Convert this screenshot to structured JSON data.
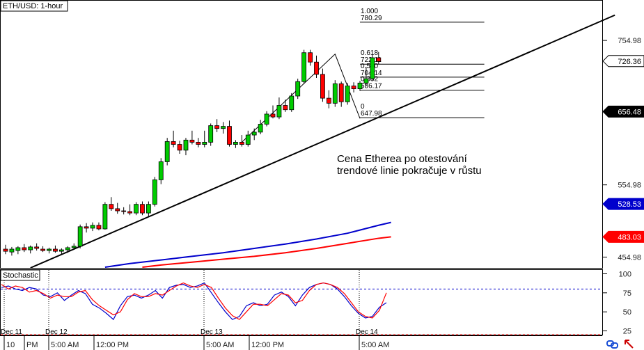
{
  "header": {
    "symbol_title": "ETH/USD: 1-hour"
  },
  "stoch_panel": {
    "title": "Stochastic"
  },
  "annotation": {
    "line1": "Cena Etherea po otestování",
    "line2": "trendové linie pokračuje v růstu"
  },
  "price_tags": [
    {
      "value": "726.36",
      "bg": "#ffffff",
      "fg": "#000000"
    },
    {
      "value": "656.48",
      "bg": "#000000",
      "fg": "#ffffff"
    },
    {
      "value": "528.53",
      "bg": "#0000cc",
      "fg": "#ffffff"
    },
    {
      "value": "483.03",
      "bg": "#ff0000",
      "fg": "#ffffff"
    }
  ],
  "time_labels": [
    {
      "day": "Dec 11",
      "time": "10"
    },
    {
      "day": "",
      "time": "PM"
    },
    {
      "day": "Dec 12",
      "time": "5:00 AM"
    },
    {
      "day": "",
      "time": "12:00 PM"
    },
    {
      "day": "Dec 13",
      "time": "5:00 AM"
    },
    {
      "day": "",
      "time": "12:00 PM"
    },
    {
      "day": "Dec 14",
      "time": "5:00 AM"
    }
  ],
  "icons": {
    "bottom_left": "link-icon",
    "bottom_right": "pointer-icon"
  },
  "colors": {
    "bull": "#00cc00",
    "bear": "#ff0000",
    "ma_fast": "#0000cc",
    "ma_slow": "#ff0000",
    "stoch_k": "#0000cc",
    "stoch_d": "#ff0000",
    "level_line": "#0000cc"
  },
  "chart_data": [
    {
      "type": "candlestick",
      "title": "ETH/USD: 1-hour",
      "ylim": [
        440,
        810
      ],
      "yticks": [
        454.98,
        554.98,
        754.98
      ],
      "candles": [
        {
          "o": 466,
          "h": 472,
          "l": 459,
          "c": 463
        },
        {
          "o": 462,
          "h": 469,
          "l": 457,
          "c": 466
        },
        {
          "o": 464,
          "h": 470,
          "l": 459,
          "c": 468
        },
        {
          "o": 468,
          "h": 473,
          "l": 462,
          "c": 465
        },
        {
          "o": 465,
          "h": 471,
          "l": 460,
          "c": 469
        },
        {
          "o": 469,
          "h": 474,
          "l": 464,
          "c": 467
        },
        {
          "o": 466,
          "h": 470,
          "l": 462,
          "c": 464
        },
        {
          "o": 464,
          "h": 468,
          "l": 460,
          "c": 466
        },
        {
          "o": 466,
          "h": 471,
          "l": 461,
          "c": 463
        },
        {
          "o": 463,
          "h": 467,
          "l": 459,
          "c": 465
        },
        {
          "o": 465,
          "h": 470,
          "l": 461,
          "c": 468
        },
        {
          "o": 468,
          "h": 474,
          "l": 466,
          "c": 470
        },
        {
          "o": 470,
          "h": 500,
          "l": 467,
          "c": 497
        },
        {
          "o": 497,
          "h": 502,
          "l": 489,
          "c": 495
        },
        {
          "o": 495,
          "h": 503,
          "l": 491,
          "c": 499
        },
        {
          "o": 499,
          "h": 503,
          "l": 492,
          "c": 494
        },
        {
          "o": 494,
          "h": 531,
          "l": 493,
          "c": 528
        },
        {
          "o": 528,
          "h": 538,
          "l": 519,
          "c": 522
        },
        {
          "o": 522,
          "h": 530,
          "l": 515,
          "c": 519
        },
        {
          "o": 519,
          "h": 524,
          "l": 514,
          "c": 518
        },
        {
          "o": 518,
          "h": 528,
          "l": 513,
          "c": 516
        },
        {
          "o": 516,
          "h": 531,
          "l": 513,
          "c": 528
        },
        {
          "o": 528,
          "h": 532,
          "l": 513,
          "c": 516
        },
        {
          "o": 516,
          "h": 532,
          "l": 511,
          "c": 528
        },
        {
          "o": 528,
          "h": 566,
          "l": 525,
          "c": 562
        },
        {
          "o": 562,
          "h": 592,
          "l": 556,
          "c": 587
        },
        {
          "o": 587,
          "h": 620,
          "l": 582,
          "c": 615
        },
        {
          "o": 615,
          "h": 630,
          "l": 607,
          "c": 611
        },
        {
          "o": 611,
          "h": 616,
          "l": 598,
          "c": 603
        },
        {
          "o": 603,
          "h": 620,
          "l": 596,
          "c": 617
        },
        {
          "o": 617,
          "h": 630,
          "l": 611,
          "c": 614
        },
        {
          "o": 614,
          "h": 620,
          "l": 607,
          "c": 611
        },
        {
          "o": 611,
          "h": 630,
          "l": 607,
          "c": 614
        },
        {
          "o": 614,
          "h": 640,
          "l": 609,
          "c": 637
        },
        {
          "o": 637,
          "h": 646,
          "l": 628,
          "c": 633
        },
        {
          "o": 633,
          "h": 642,
          "l": 626,
          "c": 636
        },
        {
          "o": 636,
          "h": 644,
          "l": 608,
          "c": 611
        },
        {
          "o": 611,
          "h": 617,
          "l": 606,
          "c": 614
        },
        {
          "o": 614,
          "h": 624,
          "l": 608,
          "c": 611
        },
        {
          "o": 611,
          "h": 630,
          "l": 608,
          "c": 624
        },
        {
          "o": 624,
          "h": 633,
          "l": 617,
          "c": 628
        },
        {
          "o": 628,
          "h": 645,
          "l": 625,
          "c": 639
        },
        {
          "o": 639,
          "h": 657,
          "l": 636,
          "c": 653
        },
        {
          "o": 653,
          "h": 665,
          "l": 647,
          "c": 649
        },
        {
          "o": 649,
          "h": 676,
          "l": 646,
          "c": 665
        },
        {
          "o": 665,
          "h": 673,
          "l": 656,
          "c": 659
        },
        {
          "o": 659,
          "h": 682,
          "l": 656,
          "c": 678
        },
        {
          "o": 678,
          "h": 702,
          "l": 674,
          "c": 698
        },
        {
          "o": 698,
          "h": 742,
          "l": 695,
          "c": 738
        },
        {
          "o": 738,
          "h": 742,
          "l": 720,
          "c": 725
        },
        {
          "o": 725,
          "h": 734,
          "l": 703,
          "c": 708
        },
        {
          "o": 708,
          "h": 716,
          "l": 670,
          "c": 675
        },
        {
          "o": 675,
          "h": 686,
          "l": 661,
          "c": 668
        },
        {
          "o": 668,
          "h": 700,
          "l": 663,
          "c": 695
        },
        {
          "o": 695,
          "h": 698,
          "l": 663,
          "c": 670
        },
        {
          "o": 670,
          "h": 696,
          "l": 666,
          "c": 692
        },
        {
          "o": 692,
          "h": 697,
          "l": 683,
          "c": 688
        },
        {
          "o": 688,
          "h": 699,
          "l": 685,
          "c": 696
        },
        {
          "o": 696,
          "h": 718,
          "l": 692,
          "c": 702
        },
        {
          "o": 702,
          "h": 736,
          "l": 699,
          "c": 731
        },
        {
          "o": 731,
          "h": 739,
          "l": 722,
          "c": 726
        }
      ],
      "series": [
        {
          "name": "",
          "color": "#0000cc",
          "values": [
            [
              16,
              441
            ],
            [
              20,
              446
            ],
            [
              25,
              451
            ],
            [
              30,
              456
            ],
            [
              35,
              461
            ],
            [
              40,
              467
            ],
            [
              45,
              473
            ],
            [
              50,
              480
            ],
            [
              55,
              488
            ],
            [
              60,
              499
            ],
            [
              62,
              503
            ]
          ]
        },
        {
          "name": "",
          "color": "#ff0000",
          "values": [
            [
              22,
              441
            ],
            [
              25,
              444
            ],
            [
              30,
              448
            ],
            [
              35,
              452
            ],
            [
              40,
              456
            ],
            [
              45,
              461
            ],
            [
              50,
              467
            ],
            [
              55,
              474
            ],
            [
              60,
              481
            ],
            [
              62,
              483
            ]
          ]
        }
      ],
      "trendline": [
        [
          4,
          440
        ],
        [
          98,
          790
        ]
      ],
      "zigzag": [
        [
          38,
          614
        ],
        [
          53,
          736
        ],
        [
          57,
          647
        ]
      ],
      "fibonacci": {
        "x_range": [
          57,
          77
        ],
        "levels": [
          {
            "ratio": "1.000",
            "price": "780.29"
          },
          {
            "ratio": "0.618",
            "price": "722.11"
          },
          {
            "ratio": "0.500",
            "price": "704.14"
          },
          {
            "ratio": "0.382",
            "price": "686.17"
          },
          {
            "ratio": "0",
            "price": "647.98"
          }
        ]
      }
    },
    {
      "type": "line",
      "title": "Stochastic",
      "ylim": [
        20,
        105
      ],
      "yticks": [
        25,
        50,
        75,
        100
      ],
      "levels": [
        20,
        80
      ],
      "series": [
        {
          "name": "",
          "color": "#0000cc",
          "values": [
            [
              0,
              82
            ],
            [
              4,
              84
            ],
            [
              8,
              80
            ],
            [
              12,
              78
            ],
            [
              16,
              82
            ],
            [
              20,
              80
            ],
            [
              24,
              72
            ],
            [
              28,
              70
            ],
            [
              32,
              75
            ],
            [
              36,
              65
            ],
            [
              40,
              72
            ],
            [
              44,
              78
            ],
            [
              48,
              74
            ],
            [
              52,
              60
            ],
            [
              56,
              55
            ],
            [
              60,
              48
            ],
            [
              64,
              40
            ],
            [
              68,
              58
            ],
            [
              72,
              70
            ],
            [
              76,
              72
            ],
            [
              80,
              68
            ],
            [
              84,
              72
            ],
            [
              88,
              78
            ],
            [
              92,
              68
            ],
            [
              96,
              82
            ],
            [
              100,
              85
            ],
            [
              104,
              86
            ],
            [
              108,
              82
            ],
            [
              112,
              84
            ],
            [
              116,
              88
            ],
            [
              120,
              75
            ],
            [
              124,
              62
            ],
            [
              128,
              50
            ],
            [
              132,
              40
            ],
            [
              136,
              44
            ],
            [
              140,
              58
            ],
            [
              144,
              62
            ],
            [
              148,
              58
            ],
            [
              152,
              60
            ],
            [
              156,
              72
            ],
            [
              160,
              76
            ],
            [
              164,
              70
            ],
            [
              168,
              58
            ],
            [
              172,
              72
            ],
            [
              176,
              82
            ],
            [
              180,
              86
            ],
            [
              184,
              88
            ],
            [
              188,
              86
            ],
            [
              192,
              80
            ],
            [
              196,
              70
            ],
            [
              200,
              58
            ],
            [
              204,
              48
            ],
            [
              208,
              42
            ],
            [
              212,
              44
            ],
            [
              216,
              56
            ],
            [
              220,
              62
            ]
          ]
        },
        {
          "name": "",
          "color": "#ff0000",
          "values": [
            [
              0,
              86
            ],
            [
              4,
              80
            ],
            [
              8,
              84
            ],
            [
              12,
              82
            ],
            [
              16,
              76
            ],
            [
              20,
              78
            ],
            [
              24,
              74
            ],
            [
              28,
              68
            ],
            [
              32,
              72
            ],
            [
              36,
              70
            ],
            [
              40,
              70
            ],
            [
              44,
              76
            ],
            [
              48,
              78
            ],
            [
              52,
              66
            ],
            [
              56,
              58
            ],
            [
              60,
              52
            ],
            [
              64,
              46
            ],
            [
              68,
              50
            ],
            [
              72,
              66
            ],
            [
              76,
              74
            ],
            [
              80,
              70
            ],
            [
              84,
              70
            ],
            [
              88,
              74
            ],
            [
              92,
              72
            ],
            [
              96,
              78
            ],
            [
              100,
              84
            ],
            [
              104,
              88
            ],
            [
              108,
              84
            ],
            [
              112,
              82
            ],
            [
              116,
              86
            ],
            [
              120,
              82
            ],
            [
              124,
              68
            ],
            [
              128,
              55
            ],
            [
              132,
              45
            ],
            [
              136,
              40
            ],
            [
              140,
              50
            ],
            [
              144,
              60
            ],
            [
              148,
              60
            ],
            [
              152,
              58
            ],
            [
              156,
              66
            ],
            [
              160,
              74
            ],
            [
              164,
              72
            ],
            [
              168,
              62
            ],
            [
              172,
              65
            ],
            [
              176,
              78
            ],
            [
              180,
              86
            ],
            [
              184,
              88
            ],
            [
              188,
              86
            ],
            [
              192,
              82
            ],
            [
              196,
              74
            ],
            [
              200,
              62
            ],
            [
              204,
              50
            ],
            [
              208,
              44
            ],
            [
              212,
              42
            ],
            [
              216,
              52
            ],
            [
              220,
              75
            ]
          ]
        }
      ]
    }
  ]
}
